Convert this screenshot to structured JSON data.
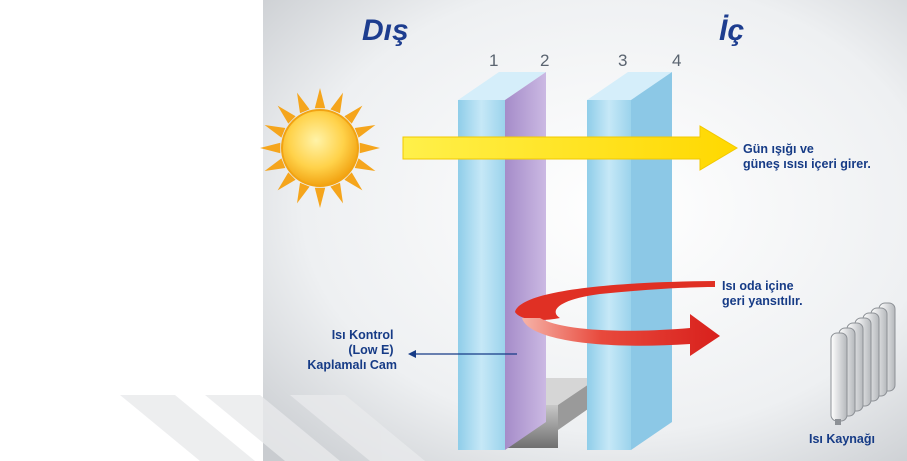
{
  "labels": {
    "outside": "Dış",
    "inside": "İç",
    "pane_numbers": [
      "1",
      "2",
      "3",
      "4"
    ],
    "sunlight": [
      "Gün ışığı ve",
      "güneş ısısı içeri girer."
    ],
    "heat_reflected": [
      "Isı oda içine",
      "geri yansıtılır."
    ],
    "lowe_glass": [
      "Isı Kontrol",
      "(Low E)",
      "Kaplamalı Cam"
    ],
    "heat_source": "Isı Kaynağı"
  },
  "colors": {
    "title": "#1d3d8f",
    "note_text": "#163b86",
    "glass": "#a9d8ef",
    "lowe_coating": "#b9a3d6",
    "sun": "#f7b81c",
    "sun_arrow": "#ffe600",
    "heat_arrow": "#e02a22"
  }
}
